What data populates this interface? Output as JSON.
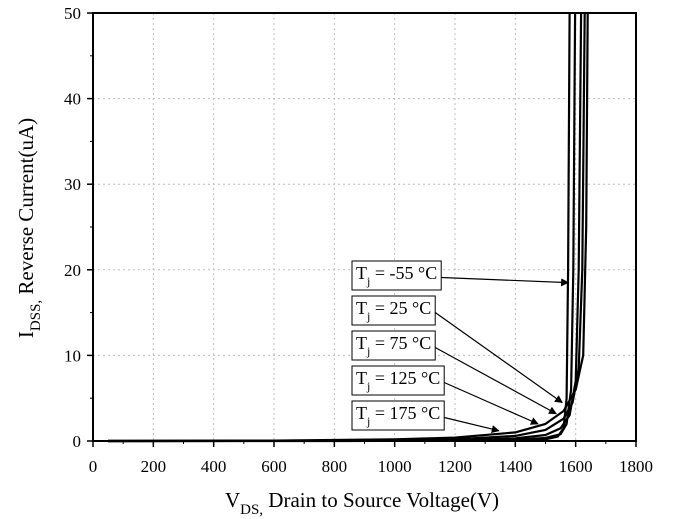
{
  "chart_data": {
    "type": "line",
    "xlabel": {
      "main": "V",
      "sub": "DS,",
      "rest": " Drain to Source Voltage(V)"
    },
    "ylabel": {
      "main": "I",
      "sub": "DSS,",
      "rest": " Reverse Current(uA)"
    },
    "xlim": [
      0,
      1800
    ],
    "ylim": [
      0,
      50
    ],
    "xticks": [
      0,
      200,
      400,
      600,
      800,
      1000,
      1200,
      1400,
      1600,
      1800
    ],
    "yticks": [
      0,
      10,
      20,
      30,
      40,
      50
    ],
    "grid": true,
    "series": [
      {
        "name": "Tj = -55 °C",
        "x": [
          50,
          800,
          1200,
          1400,
          1500,
          1540,
          1560,
          1570,
          1575,
          1580
        ],
        "y": [
          0,
          0,
          0.02,
          0.08,
          0.2,
          0.5,
          1.5,
          5,
          20,
          50
        ]
      },
      {
        "name": "Tj = 25 °C",
        "x": [
          50,
          800,
          1200,
          1400,
          1500,
          1550,
          1570,
          1585,
          1592,
          1598
        ],
        "y": [
          0,
          0.01,
          0.05,
          0.15,
          0.35,
          0.8,
          2.0,
          6.0,
          20,
          50
        ]
      },
      {
        "name": "Tj = 75 °C",
        "x": [
          50,
          800,
          1200,
          1400,
          1500,
          1550,
          1580,
          1600,
          1610,
          1618
        ],
        "y": [
          0,
          0.02,
          0.1,
          0.3,
          0.7,
          1.5,
          3.0,
          7.0,
          20,
          50
        ]
      },
      {
        "name": "Tj = 125 °C",
        "x": [
          50,
          800,
          1200,
          1400,
          1500,
          1560,
          1590,
          1610,
          1622,
          1630
        ],
        "y": [
          0,
          0.03,
          0.2,
          0.6,
          1.3,
          2.6,
          4.5,
          8.5,
          20,
          50
        ]
      },
      {
        "name": "Tj = 175 °C",
        "x": [
          50,
          600,
          1000,
          1200,
          1400,
          1500,
          1560,
          1600,
          1625,
          1635,
          1640
        ],
        "y": [
          0,
          0.05,
          0.2,
          0.4,
          1.0,
          2.0,
          3.5,
          6.0,
          10,
          25,
          50
        ]
      }
    ],
    "annotations": [
      {
        "label": "T",
        "sub": "j",
        "text": " = -55 °C",
        "target": [
          1575,
          18.5
        ]
      },
      {
        "label": "T",
        "sub": "j",
        "text": " = 25 °C",
        "target": [
          1555,
          4.5
        ]
      },
      {
        "label": "T",
        "sub": "j",
        "text": " = 75 °C",
        "target": [
          1535,
          3.2
        ]
      },
      {
        "label": "T",
        "sub": "j",
        "text": " = 125 °C",
        "target": [
          1475,
          2.0
        ]
      },
      {
        "label": "T",
        "sub": "j",
        "text": " = 175 °C",
        "target": [
          1345,
          1.2
        ]
      }
    ]
  }
}
